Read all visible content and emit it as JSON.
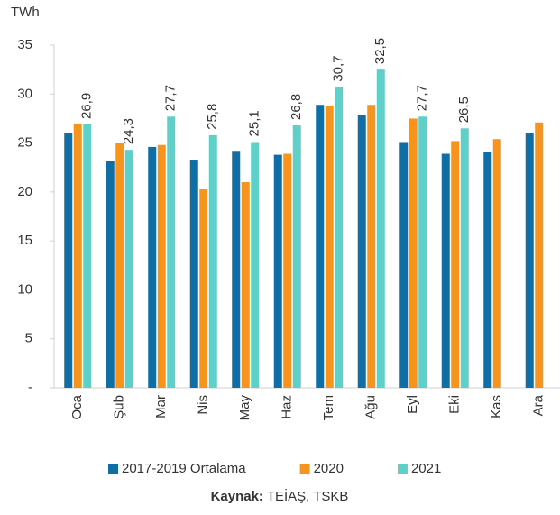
{
  "chart_data": {
    "type": "bar",
    "y_label": "TWh",
    "categories": [
      "Oca",
      "Şub",
      "Mar",
      "Nis",
      "May",
      "Haz",
      "Tem",
      "Ağu",
      "Eyl",
      "Eki",
      "Kas",
      "Ara"
    ],
    "series": [
      {
        "name": "2017-2019 Ortalama",
        "color": "#0f6ea5",
        "values": [
          26.0,
          23.2,
          24.6,
          23.3,
          24.2,
          23.8,
          28.9,
          27.9,
          25.1,
          23.9,
          24.1,
          26.0
        ]
      },
      {
        "name": "2020",
        "color": "#f7941d",
        "values": [
          27.0,
          25.0,
          24.8,
          20.3,
          21.0,
          23.9,
          28.8,
          28.9,
          27.5,
          25.2,
          25.4,
          27.1
        ]
      },
      {
        "name": "2021",
        "color": "#5fcfc9",
        "values": [
          26.9,
          24.3,
          27.7,
          25.8,
          25.1,
          26.8,
          30.7,
          32.5,
          27.7,
          26.5,
          null,
          null
        ],
        "value_labels": [
          "26,9",
          "24,3",
          "27,7",
          "25,8",
          "25,1",
          "26,8",
          "30,7",
          "32,5",
          "27,7",
          "26,5",
          null,
          null
        ]
      }
    ],
    "ylim": [
      0,
      35
    ],
    "yticks": [
      {
        "value": 0,
        "label": "-"
      },
      5,
      10,
      15,
      20,
      25,
      30,
      35
    ],
    "grid": false,
    "source_label": "Kaynak:",
    "source": "TEİAŞ, TSKB"
  }
}
